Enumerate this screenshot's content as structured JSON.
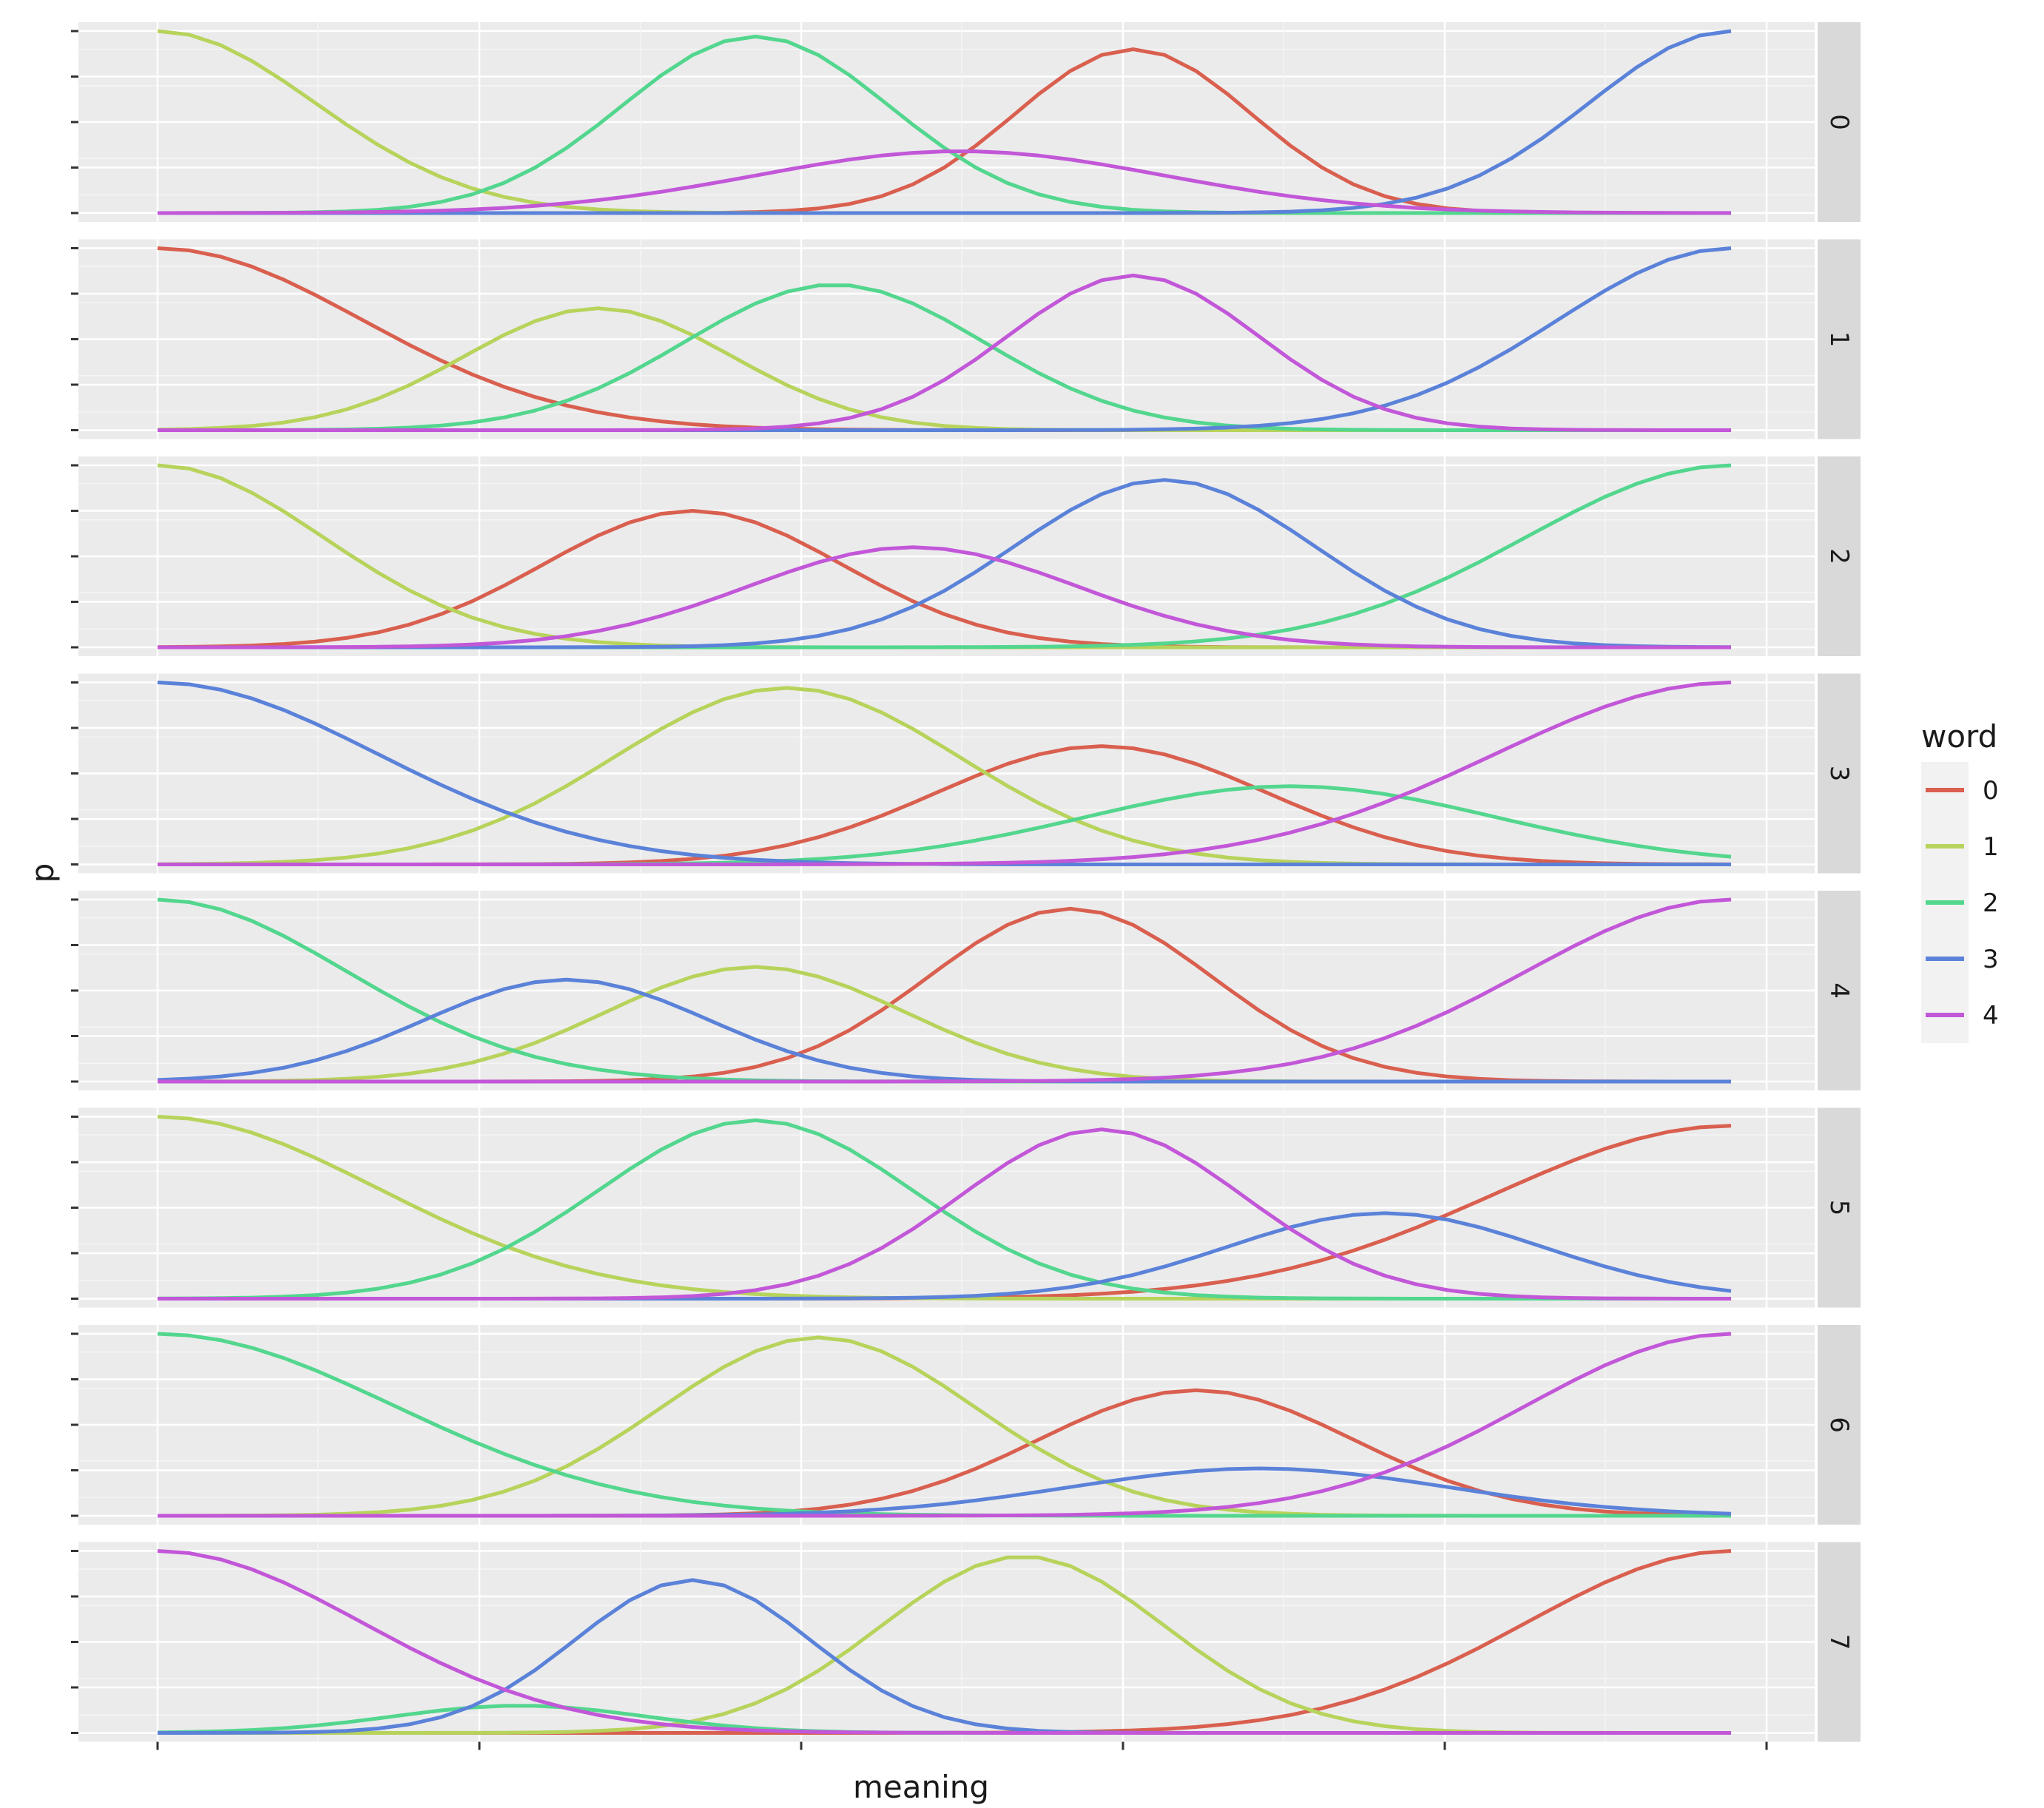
{
  "chart_data": {
    "type": "line",
    "xlabel": "meaning",
    "ylabel": "p",
    "legend": {
      "title": "word",
      "placement": "right"
    },
    "colors": {
      "0": "#d95f4f",
      "1": "#b7d35b",
      "2": "#53d68e",
      "3": "#5b82d9",
      "4": "#c257d8"
    },
    "series_names": [
      "0",
      "1",
      "2",
      "3",
      "4"
    ],
    "xlim": [
      0,
      1
    ],
    "ylim": [
      0,
      1
    ],
    "facets": [
      {
        "label": "0",
        "peaks": {
          "0": [
            0.62,
            0.075,
            0.9
          ],
          "1": [
            0.0,
            0.1,
            1.0
          ],
          "2": [
            0.38,
            0.085,
            0.97
          ],
          "3": [
            1.0,
            0.09,
            1.0
          ],
          "4": [
            0.51,
            0.13,
            0.34
          ]
        }
      },
      {
        "label": "1",
        "peaks": {
          "0": [
            0.0,
            0.13,
            1.0
          ],
          "1": [
            0.28,
            0.085,
            0.67
          ],
          "2": [
            0.43,
            0.095,
            0.8
          ],
          "3": [
            1.0,
            0.11,
            1.0
          ],
          "4": [
            0.62,
            0.08,
            0.85
          ]
        }
      },
      {
        "label": "2",
        "peaks": {
          "0": [
            0.34,
            0.095,
            0.75
          ],
          "1": [
            0.0,
            0.105,
            1.0
          ],
          "2": [
            1.0,
            0.13,
            1.0
          ],
          "3": [
            0.64,
            0.095,
            0.92
          ],
          "4": [
            0.48,
            0.105,
            0.55
          ]
        }
      },
      {
        "label": "3",
        "peaks": {
          "0": [
            0.6,
            0.105,
            0.65
          ],
          "1": [
            0.4,
            0.11,
            0.97
          ],
          "2": [
            0.72,
            0.13,
            0.43
          ],
          "3": [
            0.0,
            0.14,
            1.0
          ],
          "4": [
            1.0,
            0.15,
            1.0
          ]
        }
      },
      {
        "label": "4",
        "peaks": {
          "0": [
            0.58,
            0.09,
            0.95
          ],
          "1": [
            0.38,
            0.095,
            0.63
          ],
          "2": [
            0.0,
            0.12,
            1.0
          ],
          "3": [
            0.26,
            0.09,
            0.56
          ],
          "4": [
            1.0,
            0.13,
            1.0
          ]
        }
      },
      {
        "label": "5",
        "peaks": {
          "0": [
            1.0,
            0.15,
            0.95
          ],
          "1": [
            0.0,
            0.14,
            1.0
          ],
          "2": [
            0.38,
            0.1,
            0.98
          ],
          "3": [
            0.78,
            0.1,
            0.47
          ],
          "4": [
            0.6,
            0.09,
            0.93
          ]
        }
      },
      {
        "label": "6",
        "peaks": {
          "0": [
            0.66,
            0.1,
            0.69
          ],
          "1": [
            0.42,
            0.1,
            0.98
          ],
          "2": [
            0.0,
            0.15,
            1.0
          ],
          "3": [
            0.7,
            0.12,
            0.26
          ],
          "4": [
            1.0,
            0.13,
            1.0
          ]
        }
      },
      {
        "label": "7",
        "peaks": {
          "0": [
            1.0,
            0.13,
            1.0
          ],
          "1": [
            0.55,
            0.09,
            0.97
          ],
          "2": [
            0.23,
            0.08,
            0.15
          ],
          "3": [
            0.34,
            0.075,
            0.84
          ],
          "4": [
            0.0,
            0.13,
            1.0
          ]
        }
      }
    ]
  }
}
